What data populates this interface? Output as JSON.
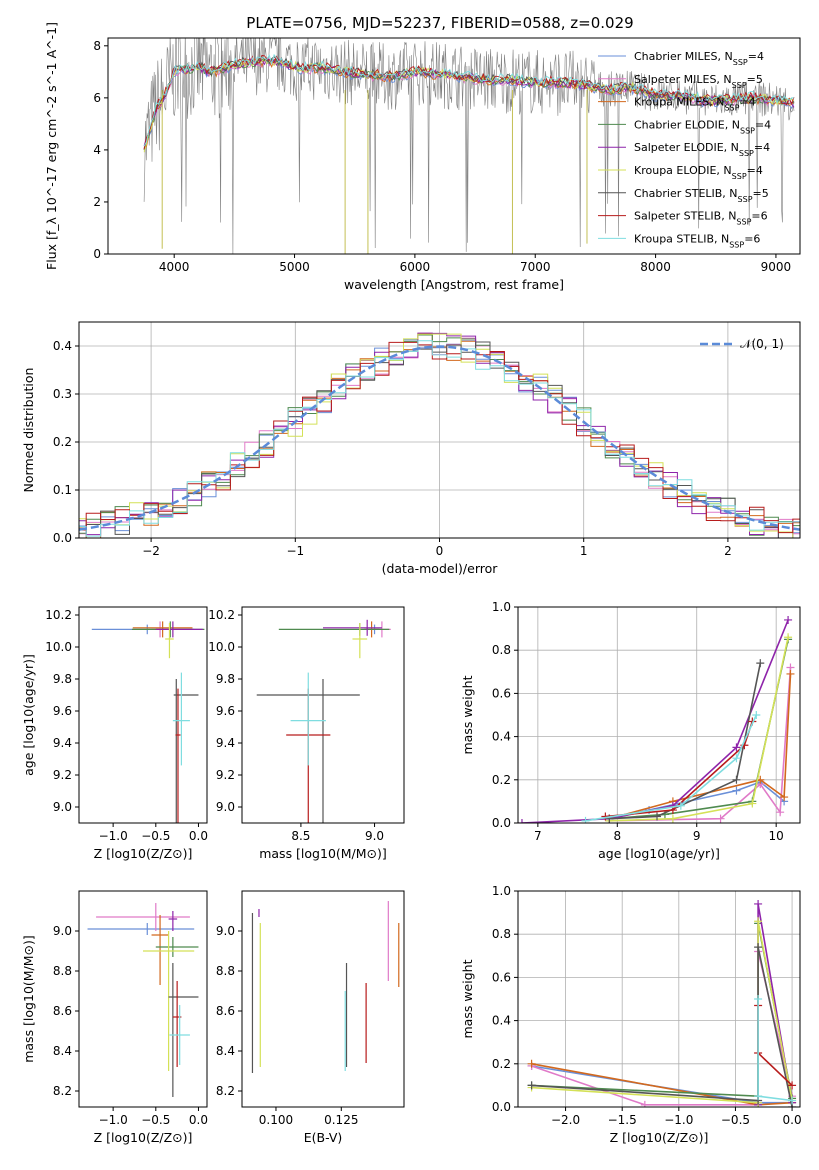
{
  "page_title": "PLATE=0756, MJD=52237, FIBERID=0588, z=0.029",
  "colors": {
    "Chabrier MILES": "#6a8fd8",
    "Salpeter MILES": "#e07ac8",
    "Kroupa MILES": "#d2691e",
    "Chabrier ELODIE": "#4f8a4f",
    "Salpeter ELODIE": "#8e24aa",
    "Kroupa ELODIE": "#d4e157",
    "Chabrier STELIB": "#555555",
    "Salpeter STELIB": "#b71c1c",
    "Kroupa STELIB": "#7fdde0"
  },
  "chart_data": [
    {
      "id": "spectrum",
      "type": "line",
      "title": "PLATE=0756, MJD=52237, FIBERID=0588, z=0.029",
      "xlabel": "wavelength [Angstrom, rest frame]",
      "ylabel": "Flux [f_λ 10^-17 erg cm^-2 s^-1 A^-1]",
      "xlim": [
        3450,
        9200
      ],
      "ylim": [
        0,
        8.3
      ],
      "xticks": [
        4000,
        5000,
        6000,
        7000,
        8000,
        9000
      ],
      "yticks": [
        0,
        2,
        4,
        6,
        8
      ],
      "grid": false,
      "legend_position": "top-right",
      "legend": [
        {
          "label": "Chabrier MILES, N",
          "sub": "SSP",
          "suffix": "=4"
        },
        {
          "label": "Salpeter MILES, N",
          "sub": "SSP",
          "suffix": "=5"
        },
        {
          "label": "Kroupa MILES, N",
          "sub": "SSP",
          "suffix": "=4"
        },
        {
          "label": "Chabrier ELODIE, N",
          "sub": "SSP",
          "suffix": "=4"
        },
        {
          "label": "Salpeter ELODIE, N",
          "sub": "SSP",
          "suffix": "=4"
        },
        {
          "label": "Kroupa ELODIE, N",
          "sub": "SSP",
          "suffix": "=4"
        },
        {
          "label": "Chabrier STELIB, N",
          "sub": "SSP",
          "suffix": "=5"
        },
        {
          "label": "Salpeter STELIB, N",
          "sub": "SSP",
          "suffix": "=6"
        },
        {
          "label": "Kroupa STELIB, N",
          "sub": "SSP",
          "suffix": "=6"
        }
      ],
      "data_series": {
        "x": [
          3750,
          3800,
          3850,
          3900,
          3950,
          4000,
          4100,
          4200,
          4300,
          4400,
          4500,
          4700,
          4900,
          5000,
          5100,
          5200,
          5400,
          5600,
          5800,
          6000,
          6200,
          6400,
          6600,
          6800,
          7000,
          7200,
          7400,
          7600,
          7800,
          8000,
          8200,
          8400,
          8600,
          8800,
          9000,
          9150
        ],
        "model": [
          4.0,
          4.8,
          5.6,
          5.9,
          6.4,
          7.0,
          7.1,
          7.2,
          7.0,
          7.1,
          7.3,
          7.4,
          7.4,
          7.2,
          7.1,
          7.2,
          7.0,
          6.9,
          6.8,
          7.0,
          6.9,
          6.8,
          6.7,
          6.7,
          6.6,
          6.6,
          6.5,
          6.3,
          6.4,
          6.1,
          6.1,
          5.9,
          5.9,
          6.0,
          5.9,
          5.8
        ],
        "data": [
          3.5,
          7.5,
          4.2,
          8.0,
          5.0,
          7.8,
          6.0,
          8.2,
          5.8,
          7.9,
          6.5,
          8.0,
          6.9,
          7.6,
          6.4,
          7.8,
          6.2,
          7.5,
          6.0,
          7.4,
          6.4,
          7.2,
          6.1,
          7.0,
          6.2,
          7.1,
          6.0,
          6.6,
          6.2,
          6.3,
          5.6,
          6.4,
          5.5,
          6.5,
          5.4,
          6.2
        ]
      }
    },
    {
      "id": "residuals",
      "type": "histogram",
      "xlabel": "(data-model)/error",
      "ylabel": "Normed distribution",
      "xlim": [
        -2.5,
        2.5
      ],
      "ylim": [
        0,
        0.45
      ],
      "xticks": [
        -2,
        -1,
        0,
        1,
        2
      ],
      "yticks": [
        0.0,
        0.1,
        0.2,
        0.3,
        0.4
      ],
      "grid": true,
      "legend_position": "top-right",
      "reference_curve": {
        "label": "𝒩(0, 1)",
        "mean": 0,
        "sigma": 1
      },
      "bin_width": 0.1
    },
    {
      "id": "age-vs-Z",
      "type": "errorbar",
      "xlabel": "Z [log10(Z/Z⊙)]",
      "ylabel": "age [log10(age/yr)]",
      "xlim": [
        -1.4,
        0.1
      ],
      "ylim": [
        8.9,
        10.25
      ],
      "xticks": [
        -1.0,
        -0.5,
        0.0
      ],
      "yticks": [
        9.0,
        9.2,
        9.4,
        9.6,
        9.8,
        10.0,
        10.2
      ],
      "points": [
        {
          "name": "Chabrier MILES",
          "x": -0.6,
          "xerr": [
            0.65,
            0.55
          ],
          "y": 10.11,
          "yerr": [
            0.03,
            0.03
          ]
        },
        {
          "name": "Salpeter MILES",
          "x": -0.45,
          "xerr": [
            0.1,
            0.1
          ],
          "y": 10.11,
          "yerr": [
            0.05,
            0.05
          ]
        },
        {
          "name": "Kroupa MILES",
          "x": -0.42,
          "xerr": [
            0.35,
            0.35
          ],
          "y": 10.12,
          "yerr": [
            0.06,
            0.04
          ]
        },
        {
          "name": "Chabrier ELODIE",
          "x": -0.33,
          "xerr": [
            0.45,
            0.4
          ],
          "y": 10.11,
          "yerr": [
            0.05,
            0.05
          ]
        },
        {
          "name": "Salpeter ELODIE",
          "x": -0.3,
          "xerr": [
            0.2,
            0.35
          ],
          "y": 10.11,
          "yerr": [
            0.05,
            0.05
          ]
        },
        {
          "name": "Kroupa ELODIE",
          "x": -0.34,
          "xerr": [
            0.05,
            0.05
          ],
          "y": 10.05,
          "yerr": [
            0.12,
            0.1
          ]
        },
        {
          "name": "Chabrier STELIB",
          "x": -0.26,
          "xerr": [
            0.03,
            0.26
          ],
          "y": 9.7,
          "yerr": [
            0.82,
            0.1
          ]
        },
        {
          "name": "Salpeter STELIB",
          "x": -0.24,
          "xerr": [
            0.03,
            0.03
          ],
          "y": 9.45,
          "yerr": [
            0.55,
            0.29
          ]
        },
        {
          "name": "Kroupa STELIB",
          "x": -0.2,
          "xerr": [
            0.1,
            0.1
          ],
          "y": 9.54,
          "yerr": [
            0.28,
            0.3
          ]
        }
      ]
    },
    {
      "id": "age-vs-mass",
      "type": "errorbar",
      "xlabel": "mass [log10(M/M⊙)]",
      "ylabel": "",
      "xlim": [
        8.1,
        9.2
      ],
      "ylim": [
        8.9,
        10.25
      ],
      "xticks": [
        8.5,
        9.0
      ],
      "yticks": [
        9.0,
        9.2,
        9.4,
        9.6,
        9.8,
        10.0,
        10.2
      ],
      "points": [
        {
          "name": "Chabrier MILES",
          "x": 9.0,
          "xerr": [
            0.04,
            0.04
          ],
          "y": 10.11,
          "yerr": [
            0.03,
            0.03
          ]
        },
        {
          "name": "Salpeter MILES",
          "x": 9.05,
          "xerr": [
            0.05,
            0.06
          ],
          "y": 10.11,
          "yerr": [
            0.05,
            0.05
          ]
        },
        {
          "name": "Kroupa MILES",
          "x": 8.98,
          "xerr": [
            0.05,
            0.05
          ],
          "y": 10.11,
          "yerr": [
            0.05,
            0.05
          ]
        },
        {
          "name": "Chabrier ELODIE",
          "x": 8.9,
          "xerr": [
            0.55,
            0.2
          ],
          "y": 10.11,
          "yerr": [
            0.04,
            0.04
          ]
        },
        {
          "name": "Salpeter ELODIE",
          "x": 8.95,
          "xerr": [
            0.3,
            0.1
          ],
          "y": 10.12,
          "yerr": [
            0.05,
            0.05
          ]
        },
        {
          "name": "Kroupa ELODIE",
          "x": 8.9,
          "xerr": [
            0.05,
            0.05
          ],
          "y": 10.05,
          "yerr": [
            0.12,
            0.1
          ]
        },
        {
          "name": "Chabrier STELIB",
          "x": 8.65,
          "xerr": [
            0.45,
            0.25
          ],
          "y": 9.7,
          "yerr": [
            0.82,
            0.1
          ]
        },
        {
          "name": "Salpeter STELIB",
          "x": 8.55,
          "xerr": [
            0.15,
            0.15
          ],
          "y": 9.45,
          "yerr": [
            0.55,
            0.29
          ]
        },
        {
          "name": "Kroupa STELIB",
          "x": 8.55,
          "xerr": [
            0.12,
            0.12
          ],
          "y": 9.54,
          "yerr": [
            0.28,
            0.3
          ]
        }
      ]
    },
    {
      "id": "weight-vs-age",
      "type": "line",
      "xlabel": "age [log10(age/yr)]",
      "ylabel": "mass weight",
      "xlim": [
        6.75,
        10.3
      ],
      "ylim": [
        0,
        1.0
      ],
      "xticks": [
        7,
        8,
        9,
        10
      ],
      "yticks": [
        0.0,
        0.2,
        0.4,
        0.6,
        0.8,
        1.0
      ],
      "grid": true,
      "series": [
        {
          "name": "Chabrier MILES",
          "x": [
            7.9,
            8.4,
            9.5,
            9.8,
            10.1
          ],
          "y": [
            0.02,
            0.06,
            0.15,
            0.19,
            0.1
          ]
        },
        {
          "name": "Salpeter MILES",
          "x": [
            7.9,
            9.3,
            9.8,
            10.05,
            10.18
          ],
          "y": [
            0.01,
            0.02,
            0.18,
            0.05,
            0.72
          ]
        },
        {
          "name": "Kroupa MILES",
          "x": [
            7.9,
            8.7,
            9.8,
            10.1,
            10.18
          ],
          "y": [
            0.02,
            0.1,
            0.2,
            0.12,
            0.69
          ]
        },
        {
          "name": "Chabrier ELODIE",
          "x": [
            7.9,
            8.6,
            9.7,
            10.15
          ],
          "y": [
            0.02,
            0.04,
            0.1,
            0.85
          ]
        },
        {
          "name": "Salpeter ELODIE",
          "x": [
            6.8,
            7.9,
            8.7,
            9.5,
            10.15
          ],
          "y": [
            0.0,
            0.02,
            0.08,
            0.35,
            0.94
          ]
        },
        {
          "name": "Kroupa ELODIE",
          "x": [
            7.9,
            8.7,
            9.7,
            10.15
          ],
          "y": [
            0.01,
            0.02,
            0.09,
            0.86
          ]
        },
        {
          "name": "Chabrier STELIB",
          "x": [
            7.9,
            8.5,
            9.5,
            9.8
          ],
          "y": [
            0.02,
            0.03,
            0.2,
            0.74
          ]
        },
        {
          "name": "Salpeter STELIB",
          "x": [
            7.85,
            8.7,
            9.6,
            9.7
          ],
          "y": [
            0.03,
            0.06,
            0.36,
            0.47
          ]
        },
        {
          "name": "Kroupa STELIB",
          "x": [
            7.6,
            8.8,
            9.5,
            9.75
          ],
          "y": [
            0.01,
            0.08,
            0.3,
            0.5
          ]
        }
      ]
    },
    {
      "id": "mass-vs-Z",
      "type": "errorbar",
      "xlabel": "Z [log10(Z/Z⊙)]",
      "ylabel": "mass [log10(M/M⊙)]",
      "xlim": [
        -1.4,
        0.1
      ],
      "ylim": [
        8.12,
        9.2
      ],
      "xticks": [
        -1.0,
        -0.5,
        0.0
      ],
      "yticks": [
        8.2,
        8.4,
        8.6,
        8.8,
        9.0
      ],
      "points": [
        {
          "name": "Chabrier MILES",
          "x": -0.6,
          "xerr": [
            0.7,
            0.55
          ],
          "y": 9.01,
          "yerr": [
            0.03,
            0.03
          ]
        },
        {
          "name": "Salpeter MILES",
          "x": -0.5,
          "xerr": [
            0.7,
            0.4
          ],
          "y": 9.07,
          "yerr": [
            0.07,
            0.07
          ]
        },
        {
          "name": "Kroupa MILES",
          "x": -0.45,
          "xerr": [
            0.1,
            0.1
          ],
          "y": 8.98,
          "yerr": [
            0.25,
            0.1
          ]
        },
        {
          "name": "Chabrier ELODIE",
          "x": -0.3,
          "xerr": [
            0.2,
            0.3
          ],
          "y": 8.92,
          "yerr": [
            0.05,
            0.05
          ]
        },
        {
          "name": "Salpeter ELODIE",
          "x": -0.3,
          "xerr": [
            0.05,
            0.05
          ],
          "y": 9.06,
          "yerr": [
            0.06,
            0.04
          ]
        },
        {
          "name": "Kroupa ELODIE",
          "x": -0.35,
          "xerr": [
            0.3,
            0.3
          ],
          "y": 8.9,
          "yerr": [
            0.6,
            0.1
          ]
        },
        {
          "name": "Chabrier STELIB",
          "x": -0.3,
          "xerr": [
            0.05,
            0.3
          ],
          "y": 8.67,
          "yerr": [
            0.5,
            0.17
          ]
        },
        {
          "name": "Salpeter STELIB",
          "x": -0.25,
          "xerr": [
            0.05,
            0.05
          ],
          "y": 8.57,
          "yerr": [
            0.25,
            0.18
          ]
        },
        {
          "name": "Kroupa STELIB",
          "x": -0.22,
          "xerr": [
            0.12,
            0.12
          ],
          "y": 8.48,
          "yerr": [
            0.15,
            0.15
          ]
        }
      ]
    },
    {
      "id": "mass-vs-EBV",
      "type": "errorbar",
      "xlabel": "E(B-V)",
      "ylabel": "",
      "xlim": [
        0.087,
        0.149
      ],
      "ylim": [
        8.12,
        9.2
      ],
      "xticks": [
        0.1,
        0.125
      ],
      "xticklabels": [
        "0.100",
        "0.125"
      ],
      "yticks": [
        8.2,
        8.4,
        8.6,
        8.8,
        9.0
      ],
      "points": [
        {
          "name": "Salpeter MILES",
          "x": 0.143,
          "xerr": [
            0,
            0
          ],
          "y": 8.95,
          "yerr": [
            0.2,
            0.2
          ]
        },
        {
          "name": "Kroupa MILES",
          "x": 0.147,
          "xerr": [
            0,
            0
          ],
          "y": 8.88,
          "yerr": [
            0.16,
            0.16
          ]
        },
        {
          "name": "Salpeter ELODIE",
          "x": 0.0935,
          "xerr": [
            0,
            0
          ],
          "y": 9.09,
          "yerr": [
            0.02,
            0.02
          ]
        },
        {
          "name": "Kroupa ELODIE",
          "x": 0.094,
          "xerr": [
            0,
            0
          ],
          "y": 8.68,
          "yerr": [
            0.36,
            0.36
          ]
        },
        {
          "name": "Chabrier STELIB",
          "x": 0.091,
          "xerr": [
            0,
            0
          ],
          "y": 8.69,
          "yerr": [
            0.4,
            0.4
          ]
        },
        {
          "name": "Chabrier STELIB",
          "x": 0.127,
          "xerr": [
            0,
            0
          ],
          "y": 8.58,
          "yerr": [
            0.26,
            0.26
          ]
        },
        {
          "name": "Salpeter STELIB",
          "x": 0.1345,
          "xerr": [
            0,
            0
          ],
          "y": 8.54,
          "yerr": [
            0.2,
            0.2
          ]
        },
        {
          "name": "Kroupa STELIB",
          "x": 0.1265,
          "xerr": [
            0,
            0
          ],
          "y": 8.5,
          "yerr": [
            0.2,
            0.2
          ]
        }
      ]
    },
    {
      "id": "weight-vs-Z",
      "type": "line",
      "xlabel": "Z [log10(Z/Z⊙)]",
      "ylabel": "mass weight",
      "xlim": [
        -2.42,
        0.07
      ],
      "ylim": [
        0,
        1.0
      ],
      "xticks": [
        -2.0,
        -1.5,
        -1.0,
        -0.5,
        0.0
      ],
      "yticks": [
        0.0,
        0.2,
        0.4,
        0.6,
        0.8,
        1.0
      ],
      "grid": true,
      "series": [
        {
          "name": "Chabrier MILES",
          "x": [
            -2.3,
            -0.3,
            0.0
          ],
          "y": [
            0.19,
            0.02,
            0.02
          ]
        },
        {
          "name": "Salpeter MILES",
          "x": [
            -2.3,
            -1.3,
            -0.3,
            -0.3,
            0.0
          ],
          "y": [
            0.19,
            0.01,
            0.01,
            0.72,
            0.05
          ]
        },
        {
          "name": "Kroupa MILES",
          "x": [
            -2.3,
            -0.3,
            0.0
          ],
          "y": [
            0.2,
            0.01,
            0.02
          ]
        },
        {
          "name": "Chabrier ELODIE",
          "x": [
            -2.3,
            -0.3,
            -0.3,
            0.0
          ],
          "y": [
            0.1,
            0.05,
            0.85,
            0.04
          ]
        },
        {
          "name": "Salpeter ELODIE",
          "x": [
            -0.3,
            -0.3,
            0.0
          ],
          "y": [
            0.01,
            0.94,
            0.02
          ]
        },
        {
          "name": "Kroupa ELODIE",
          "x": [
            -2.3,
            -0.3,
            -0.3,
            0.0
          ],
          "y": [
            0.09,
            0.02,
            0.86,
            0.03
          ]
        },
        {
          "name": "Chabrier STELIB",
          "x": [
            -2.3,
            -0.3,
            -0.3,
            0.0
          ],
          "y": [
            0.1,
            0.03,
            0.74,
            0.0
          ]
        },
        {
          "name": "Salpeter STELIB",
          "x": [
            -0.3,
            -0.3,
            0.0
          ],
          "y": [
            0.47,
            0.25,
            0.1
          ]
        },
        {
          "name": "Kroupa STELIB",
          "x": [
            -0.3,
            -0.3,
            0.0
          ],
          "y": [
            0.5,
            0.05,
            0.03
          ]
        }
      ]
    }
  ]
}
